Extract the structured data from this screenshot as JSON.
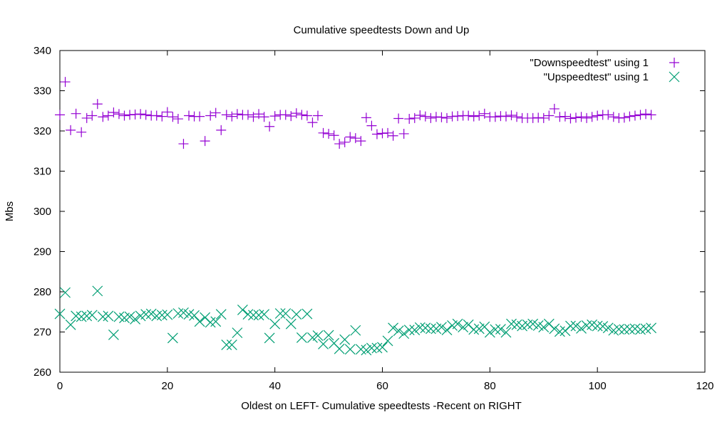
{
  "chart_data": {
    "type": "scatter",
    "title": "Cumulative speedtests Down and Up",
    "xlabel": "Oldest on LEFT- Cumulative speedtests -Recent on RIGHT",
    "ylabel": "Mbs",
    "xlim": [
      0,
      120
    ],
    "ylim": [
      260,
      340
    ],
    "xticks": [
      0,
      20,
      40,
      60,
      80,
      100,
      120
    ],
    "yticks": [
      260,
      270,
      280,
      290,
      300,
      310,
      320,
      330,
      340
    ],
    "grid": false,
    "legend_position": "top-right",
    "series": [
      {
        "name": "\"Downspeedtest\" using 1",
        "marker": "plus",
        "color": "#9400d3",
        "values": [
          324,
          332.2,
          320.2,
          324.3,
          319.7,
          323.2,
          323.8,
          326.7,
          323.5,
          323.8,
          324.6,
          324.2,
          323.8,
          324,
          324.1,
          324.2,
          324,
          323.8,
          323.8,
          323.6,
          324.7,
          323.5,
          323,
          316.8,
          323.8,
          323.6,
          323.6,
          317.5,
          323.8,
          324.5,
          320.2,
          324,
          323.6,
          324.2,
          324,
          324,
          323.5,
          324.2,
          323.5,
          321.1,
          323.7,
          324,
          324,
          323.7,
          324.4,
          324,
          323.8,
          322.1,
          323.8,
          319.5,
          319.3,
          318.9,
          316.8,
          317.2,
          318.5,
          318.2,
          317.5,
          323.3,
          321.3,
          319.2,
          319.4,
          319.5,
          318.8,
          323.1,
          319.3,
          323,
          323.2,
          323.9,
          323.6,
          323.2,
          323.5,
          323.4,
          323.2,
          323.6,
          323.7,
          323.8,
          323.8,
          323.6,
          323.8,
          324.3,
          323.5,
          323.5,
          323.7,
          323.6,
          323.9,
          323.5,
          323.2,
          323.2,
          323.2,
          323.3,
          323.2,
          323.8,
          325.5,
          323.5,
          323.6,
          323.1,
          323.3,
          323.5,
          323.2,
          323.5,
          323.8,
          324,
          324,
          323.5,
          323.2,
          323.3,
          323.6,
          323.8,
          324,
          324.2,
          324
        ]
      },
      {
        "name": "\"Upspeedtest\" using 1",
        "marker": "cross",
        "color": "#009e73",
        "values": [
          274.5,
          279.8,
          271.8,
          274,
          273.8,
          274,
          274.2,
          280.2,
          273.8,
          274,
          269.3,
          273.8,
          273.5,
          273.8,
          273.2,
          274,
          274.4,
          274.5,
          274,
          274.2,
          274.3,
          268.5,
          274.6,
          274.8,
          274.4,
          274.1,
          272.6,
          273.6,
          272.4,
          272.6,
          274.4,
          266.8,
          266.8,
          269.8,
          275.5,
          274.4,
          274.2,
          274.2,
          274.4,
          268.5,
          272,
          274.6,
          274.6,
          272,
          274.4,
          268.6,
          274.5,
          268.6,
          269.1,
          267,
          269.2,
          267.2,
          265.8,
          268.1,
          265.7,
          270.4,
          265.7,
          265.5,
          266,
          266,
          266.2,
          267.8,
          271,
          270.3,
          269.6,
          270.5,
          270.5,
          271.1,
          271,
          270.8,
          270.8,
          271.2,
          270.5,
          271.6,
          272,
          271.2,
          271.8,
          270.6,
          270.8,
          271.3,
          269.9,
          270.6,
          270.7,
          269.9,
          272,
          271.8,
          271.5,
          271.8,
          272,
          271.6,
          271.2,
          272,
          270.8,
          270.1,
          270.3,
          271.5,
          271.5,
          270.9,
          271.6,
          271.8,
          271.5,
          271.4,
          271,
          270.4,
          270.7,
          270.6,
          270.7,
          270.8,
          270.6,
          270.8,
          271
        ]
      }
    ]
  }
}
